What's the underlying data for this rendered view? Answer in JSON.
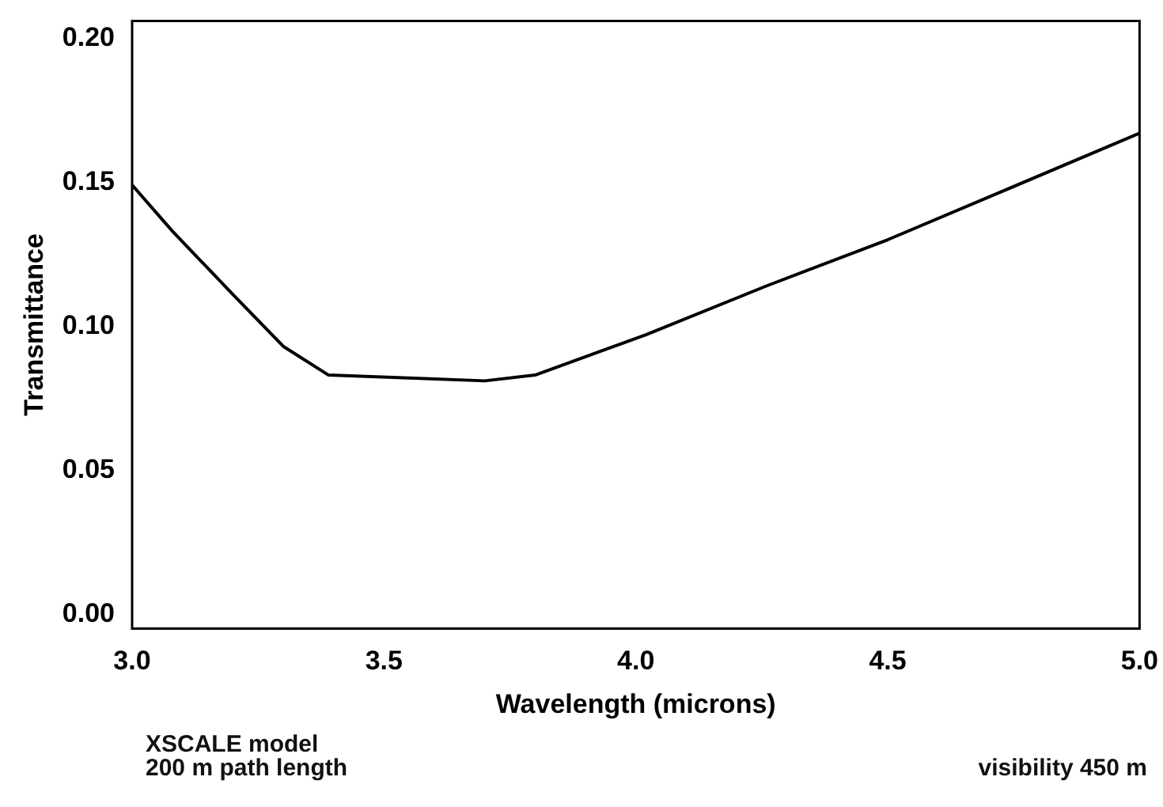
{
  "chart_data": {
    "type": "line",
    "xlabel": "Wavelength (microns)",
    "ylabel": "Transmittance",
    "x": [
      3.0,
      3.08,
      3.2,
      3.3,
      3.39,
      3.55,
      3.7,
      3.8,
      4.02,
      4.26,
      4.5,
      4.73,
      5.0
    ],
    "series": [
      {
        "color": "#000000",
        "values": [
          0.149,
          0.133,
          0.111,
          0.093,
          0.083,
          0.082,
          0.081,
          0.083,
          0.097,
          0.114,
          0.13,
          0.147,
          0.167
        ]
      }
    ],
    "xlim": [
      3.0,
      5.0
    ],
    "xticks": [
      {
        "value": 3,
        "label": "3.0"
      },
      {
        "value": 3.5,
        "label": "3.5"
      },
      {
        "value": 4,
        "label": "4.0"
      },
      {
        "value": 4.5,
        "label": "4.5"
      },
      {
        "value": 5,
        "label": "5.0"
      }
    ],
    "ylim": [
      -0.005,
      0.206
    ],
    "yticks": [
      {
        "value": 0,
        "label": "0.00"
      },
      {
        "value": 0.05,
        "label": "0.05"
      },
      {
        "value": 0.1,
        "label": "0.10"
      },
      {
        "value": 0.15,
        "label": "0.15"
      },
      {
        "value": 0.2,
        "label": "0.20"
      }
    ],
    "marker": "none",
    "grid": false,
    "legend": false,
    "annotations": [
      "XSCALE model",
      "200 m path length",
      "visibility 450 m"
    ]
  }
}
